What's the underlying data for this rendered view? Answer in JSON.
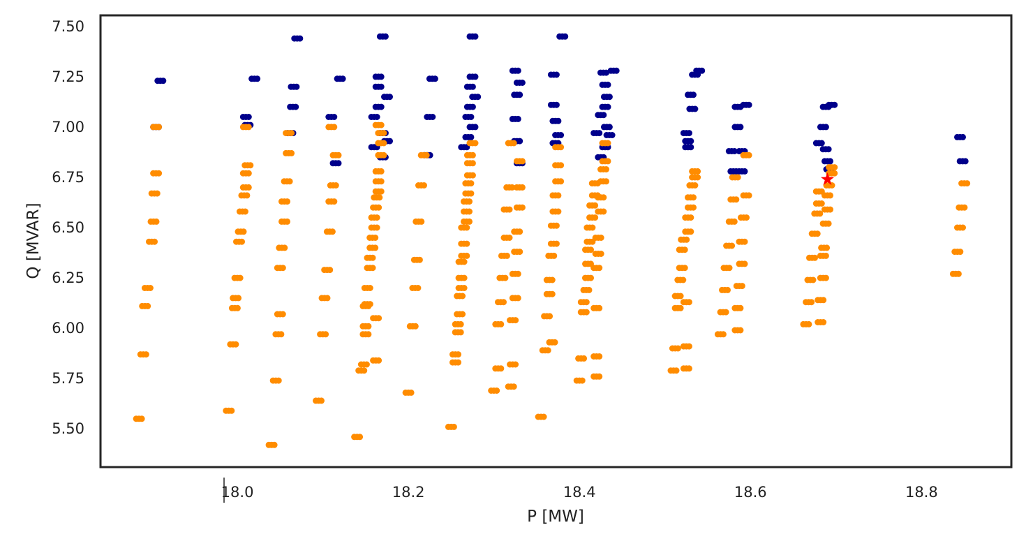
{
  "chart_data": {
    "type": "scatter",
    "xlabel": "P [MW]",
    "ylabel": "Q [MVAR]",
    "xlim": [
      17.84,
      18.905
    ],
    "ylim": [
      5.31,
      7.555
    ],
    "xticks": [
      "18.0",
      "18.2",
      "18.4",
      "18.6",
      "18.8"
    ],
    "xtick_values": [
      18.0,
      18.2,
      18.4,
      18.6,
      18.8
    ],
    "yticks": [
      "5.50",
      "5.75",
      "6.00",
      "6.25",
      "6.50",
      "6.75",
      "7.00",
      "7.25",
      "7.50"
    ],
    "ytick_values": [
      5.5,
      5.75,
      6.0,
      6.25,
      6.5,
      6.75,
      7.0,
      7.25,
      7.5
    ],
    "grid": false,
    "legend": "none",
    "colors": {
      "series_a": "#00008b",
      "series_b": "#ff8c00",
      "marker": "#ff0000",
      "frame": "#262626"
    },
    "series": [
      {
        "color": "#00008b",
        "points": [
          [
            17.91,
            7.23
          ],
          [
            17.905,
            7.0
          ],
          [
            18.01,
            7.05
          ],
          [
            18.012,
            7.01
          ],
          [
            18.02,
            7.24
          ],
          [
            18.062,
            6.97
          ],
          [
            18.065,
            7.1
          ],
          [
            18.066,
            7.2
          ],
          [
            18.07,
            7.44
          ],
          [
            18.11,
            7.05
          ],
          [
            18.115,
            6.82
          ],
          [
            18.12,
            7.24
          ],
          [
            18.16,
            6.9
          ],
          [
            18.16,
            7.05
          ],
          [
            18.165,
            7.1
          ],
          [
            18.165,
            7.2
          ],
          [
            18.165,
            7.25
          ],
          [
            18.17,
            6.85
          ],
          [
            18.17,
            6.97
          ],
          [
            18.17,
            7.45
          ],
          [
            18.175,
            6.93
          ],
          [
            18.175,
            7.15
          ],
          [
            18.222,
            6.86
          ],
          [
            18.225,
            7.05
          ],
          [
            18.228,
            7.24
          ],
          [
            18.265,
            6.9
          ],
          [
            18.27,
            6.95
          ],
          [
            18.27,
            7.05
          ],
          [
            18.272,
            7.1
          ],
          [
            18.272,
            7.2
          ],
          [
            18.275,
            7.0
          ],
          [
            18.275,
            7.25
          ],
          [
            18.275,
            7.45
          ],
          [
            18.278,
            7.15
          ],
          [
            18.325,
            7.04
          ],
          [
            18.325,
            7.28
          ],
          [
            18.327,
            6.93
          ],
          [
            18.327,
            7.16
          ],
          [
            18.33,
            6.82
          ],
          [
            18.33,
            7.22
          ],
          [
            18.37,
            7.11
          ],
          [
            18.37,
            7.26
          ],
          [
            18.372,
            6.92
          ],
          [
            18.372,
            7.03
          ],
          [
            18.375,
            6.96
          ],
          [
            18.38,
            7.45
          ],
          [
            18.42,
            6.97
          ],
          [
            18.425,
            6.85
          ],
          [
            18.425,
            7.06
          ],
          [
            18.428,
            7.27
          ],
          [
            18.43,
            6.9
          ],
          [
            18.43,
            7.1
          ],
          [
            18.43,
            7.21
          ],
          [
            18.432,
            7.0
          ],
          [
            18.432,
            7.15
          ],
          [
            18.435,
            6.96
          ],
          [
            18.44,
            7.28
          ],
          [
            18.525,
            6.97
          ],
          [
            18.527,
            6.9
          ],
          [
            18.527,
            6.93
          ],
          [
            18.53,
            7.16
          ],
          [
            18.532,
            7.09
          ],
          [
            18.535,
            7.26
          ],
          [
            18.54,
            7.28
          ],
          [
            18.578,
            6.88
          ],
          [
            18.58,
            6.78
          ],
          [
            18.585,
            7.1
          ],
          [
            18.585,
            7.0
          ],
          [
            18.59,
            6.88
          ],
          [
            18.59,
            6.78
          ],
          [
            18.595,
            7.11
          ],
          [
            18.68,
            6.92
          ],
          [
            18.685,
            7.0
          ],
          [
            18.688,
            6.89
          ],
          [
            18.688,
            7.1
          ],
          [
            18.69,
            6.83
          ],
          [
            18.692,
            6.79
          ],
          [
            18.695,
            7.11
          ],
          [
            18.845,
            6.95
          ],
          [
            18.848,
            6.83
          ]
        ]
      },
      {
        "color": "#ff8c00",
        "points": [
          [
            17.885,
            5.55
          ],
          [
            17.89,
            5.87
          ],
          [
            17.892,
            6.11
          ],
          [
            17.895,
            6.2
          ],
          [
            17.9,
            6.43
          ],
          [
            17.902,
            6.53
          ],
          [
            17.903,
            6.67
          ],
          [
            17.905,
            6.77
          ],
          [
            17.905,
            7.0
          ],
          [
            17.99,
            5.59
          ],
          [
            17.995,
            5.92
          ],
          [
            17.997,
            6.1
          ],
          [
            17.998,
            6.15
          ],
          [
            18.0,
            6.25
          ],
          [
            18.002,
            6.43
          ],
          [
            18.004,
            6.48
          ],
          [
            18.006,
            6.58
          ],
          [
            18.008,
            6.66
          ],
          [
            18.01,
            6.7
          ],
          [
            18.01,
            6.77
          ],
          [
            18.012,
            6.81
          ],
          [
            18.01,
            7.0
          ],
          [
            18.04,
            5.42
          ],
          [
            18.045,
            5.74
          ],
          [
            18.048,
            5.97
          ],
          [
            18.05,
            6.07
          ],
          [
            18.05,
            6.3
          ],
          [
            18.052,
            6.4
          ],
          [
            18.055,
            6.53
          ],
          [
            18.055,
            6.63
          ],
          [
            18.058,
            6.73
          ],
          [
            18.06,
            6.87
          ],
          [
            18.06,
            6.97
          ],
          [
            18.095,
            5.64
          ],
          [
            18.1,
            5.97
          ],
          [
            18.102,
            6.15
          ],
          [
            18.105,
            6.29
          ],
          [
            18.108,
            6.48
          ],
          [
            18.11,
            6.63
          ],
          [
            18.112,
            6.71
          ],
          [
            18.115,
            6.86
          ],
          [
            18.11,
            7.0
          ],
          [
            18.14,
            5.46
          ],
          [
            18.145,
            5.79
          ],
          [
            18.148,
            5.82
          ],
          [
            18.15,
            5.97
          ],
          [
            18.15,
            6.01
          ],
          [
            18.15,
            6.11
          ],
          [
            18.152,
            6.12
          ],
          [
            18.152,
            6.2
          ],
          [
            18.155,
            6.3
          ],
          [
            18.155,
            6.35
          ],
          [
            18.158,
            6.4
          ],
          [
            18.158,
            6.45
          ],
          [
            18.16,
            6.5
          ],
          [
            18.16,
            6.55
          ],
          [
            18.162,
            5.84
          ],
          [
            18.162,
            6.05
          ],
          [
            18.162,
            6.6
          ],
          [
            18.163,
            6.65
          ],
          [
            18.165,
            6.68
          ],
          [
            18.165,
            6.73
          ],
          [
            18.165,
            6.78
          ],
          [
            18.168,
            6.86
          ],
          [
            18.168,
            6.92
          ],
          [
            18.168,
            6.97
          ],
          [
            18.165,
            7.01
          ],
          [
            18.2,
            5.68
          ],
          [
            18.205,
            6.01
          ],
          [
            18.208,
            6.2
          ],
          [
            18.21,
            6.34
          ],
          [
            18.212,
            6.53
          ],
          [
            18.215,
            6.71
          ],
          [
            18.218,
            6.86
          ],
          [
            18.25,
            5.51
          ],
          [
            18.255,
            5.83
          ],
          [
            18.255,
            5.87
          ],
          [
            18.258,
            5.98
          ],
          [
            18.258,
            6.02
          ],
          [
            18.26,
            6.07
          ],
          [
            18.26,
            6.16
          ],
          [
            18.262,
            6.2
          ],
          [
            18.262,
            6.25
          ],
          [
            18.262,
            6.33
          ],
          [
            18.265,
            6.36
          ],
          [
            18.265,
            6.42
          ],
          [
            18.265,
            6.5
          ],
          [
            18.268,
            6.53
          ],
          [
            18.268,
            6.58
          ],
          [
            18.268,
            6.63
          ],
          [
            18.27,
            6.67
          ],
          [
            18.27,
            6.72
          ],
          [
            18.272,
            6.76
          ],
          [
            18.272,
            6.82
          ],
          [
            18.272,
            6.86
          ],
          [
            18.275,
            6.92
          ],
          [
            18.3,
            5.69
          ],
          [
            18.305,
            5.8
          ],
          [
            18.305,
            6.02
          ],
          [
            18.308,
            6.13
          ],
          [
            18.31,
            6.25
          ],
          [
            18.312,
            6.36
          ],
          [
            18.315,
            6.45
          ],
          [
            18.315,
            6.59
          ],
          [
            18.318,
            6.7
          ],
          [
            18.32,
            5.71
          ],
          [
            18.322,
            5.82
          ],
          [
            18.322,
            6.04
          ],
          [
            18.325,
            6.15
          ],
          [
            18.325,
            6.27
          ],
          [
            18.327,
            6.38
          ],
          [
            18.327,
            6.48
          ],
          [
            18.33,
            6.6
          ],
          [
            18.33,
            6.7
          ],
          [
            18.33,
            6.83
          ],
          [
            18.32,
            6.92
          ],
          [
            18.355,
            5.56
          ],
          [
            18.36,
            5.89
          ],
          [
            18.362,
            6.06
          ],
          [
            18.365,
            6.17
          ],
          [
            18.365,
            6.24
          ],
          [
            18.367,
            6.36
          ],
          [
            18.37,
            6.42
          ],
          [
            18.37,
            6.51
          ],
          [
            18.372,
            6.58
          ],
          [
            18.372,
            6.66
          ],
          [
            18.375,
            6.73
          ],
          [
            18.375,
            6.81
          ],
          [
            18.375,
            6.9
          ],
          [
            18.368,
            5.93
          ],
          [
            18.4,
            5.74
          ],
          [
            18.402,
            5.85
          ],
          [
            18.405,
            6.08
          ],
          [
            18.405,
            6.13
          ],
          [
            18.408,
            6.19
          ],
          [
            18.41,
            6.25
          ],
          [
            18.41,
            6.32
          ],
          [
            18.41,
            6.39
          ],
          [
            18.412,
            6.43
          ],
          [
            18.412,
            6.5
          ],
          [
            18.415,
            6.55
          ],
          [
            18.415,
            6.61
          ],
          [
            18.418,
            6.66
          ],
          [
            18.418,
            6.72
          ],
          [
            18.42,
            5.76
          ],
          [
            18.42,
            5.86
          ],
          [
            18.42,
            6.1
          ],
          [
            18.42,
            6.3
          ],
          [
            18.422,
            6.37
          ],
          [
            18.422,
            6.45
          ],
          [
            18.425,
            6.58
          ],
          [
            18.425,
            6.65
          ],
          [
            18.428,
            6.73
          ],
          [
            18.428,
            6.79
          ],
          [
            18.43,
            6.83
          ],
          [
            18.43,
            6.92
          ],
          [
            18.51,
            5.79
          ],
          [
            18.512,
            5.9
          ],
          [
            18.515,
            6.1
          ],
          [
            18.515,
            6.16
          ],
          [
            18.518,
            6.24
          ],
          [
            18.52,
            6.3
          ],
          [
            18.52,
            6.39
          ],
          [
            18.522,
            6.44
          ],
          [
            18.525,
            5.8
          ],
          [
            18.525,
            5.91
          ],
          [
            18.525,
            6.13
          ],
          [
            18.527,
            6.48
          ],
          [
            18.527,
            6.55
          ],
          [
            18.53,
            6.6
          ],
          [
            18.53,
            6.65
          ],
          [
            18.532,
            6.71
          ],
          [
            18.535,
            6.75
          ],
          [
            18.535,
            6.78
          ],
          [
            18.565,
            5.97
          ],
          [
            18.568,
            6.08
          ],
          [
            18.57,
            6.19
          ],
          [
            18.572,
            6.3
          ],
          [
            18.575,
            6.41
          ],
          [
            18.578,
            6.53
          ],
          [
            18.58,
            6.64
          ],
          [
            18.582,
            6.75
          ],
          [
            18.585,
            5.99
          ],
          [
            18.585,
            6.1
          ],
          [
            18.587,
            6.21
          ],
          [
            18.59,
            6.32
          ],
          [
            18.59,
            6.43
          ],
          [
            18.592,
            6.55
          ],
          [
            18.595,
            6.66
          ],
          [
            18.595,
            6.86
          ],
          [
            18.665,
            6.02
          ],
          [
            18.668,
            6.13
          ],
          [
            18.67,
            6.24
          ],
          [
            18.672,
            6.35
          ],
          [
            18.675,
            6.47
          ],
          [
            18.678,
            6.57
          ],
          [
            18.68,
            6.62
          ],
          [
            18.68,
            6.68
          ],
          [
            18.682,
            6.03
          ],
          [
            18.682,
            6.14
          ],
          [
            18.685,
            6.25
          ],
          [
            18.685,
            6.36
          ],
          [
            18.686,
            6.4
          ],
          [
            18.688,
            6.52
          ],
          [
            18.69,
            6.59
          ],
          [
            18.69,
            6.66
          ],
          [
            18.692,
            6.71
          ],
          [
            18.695,
            6.77
          ],
          [
            18.695,
            6.8
          ],
          [
            18.84,
            6.27
          ],
          [
            18.842,
            6.38
          ],
          [
            18.845,
            6.5
          ],
          [
            18.847,
            6.6
          ],
          [
            18.85,
            6.72
          ]
        ]
      },
      {
        "color": "#ff0000",
        "shape": "star",
        "points": [
          [
            18.69,
            6.74
          ]
        ]
      }
    ]
  }
}
